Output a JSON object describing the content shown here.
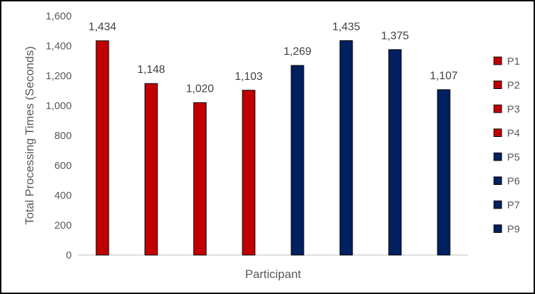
{
  "chart_data": {
    "type": "bar",
    "xlabel": "Participant",
    "ylabel": "Total Processing Times (Seconds)",
    "ylim": [
      0,
      1600
    ],
    "y_ticks": [
      "0",
      "200",
      "400",
      "600",
      "800",
      "1,000",
      "1,200",
      "1,400",
      "1,600"
    ],
    "grid": false,
    "legend_position": "right",
    "categories": [
      "P1",
      "P2",
      "P3",
      "P4",
      "P5",
      "P6",
      "P7",
      "P9"
    ],
    "values": [
      1434,
      1148,
      1020,
      1103,
      1269,
      1435,
      1375,
      1107
    ],
    "data_labels": [
      "1,434",
      "1,148",
      "1,020",
      "1,103",
      "1,269",
      "1,435",
      "1,375",
      "1,107"
    ],
    "bar_colors": [
      "#c00000",
      "#c00000",
      "#c00000",
      "#c00000",
      "#002060",
      "#002060",
      "#002060",
      "#002060"
    ]
  },
  "colors": {
    "axis_line": "#bfbfbf",
    "bar_stroke": "#000000",
    "frame": "#000000"
  }
}
